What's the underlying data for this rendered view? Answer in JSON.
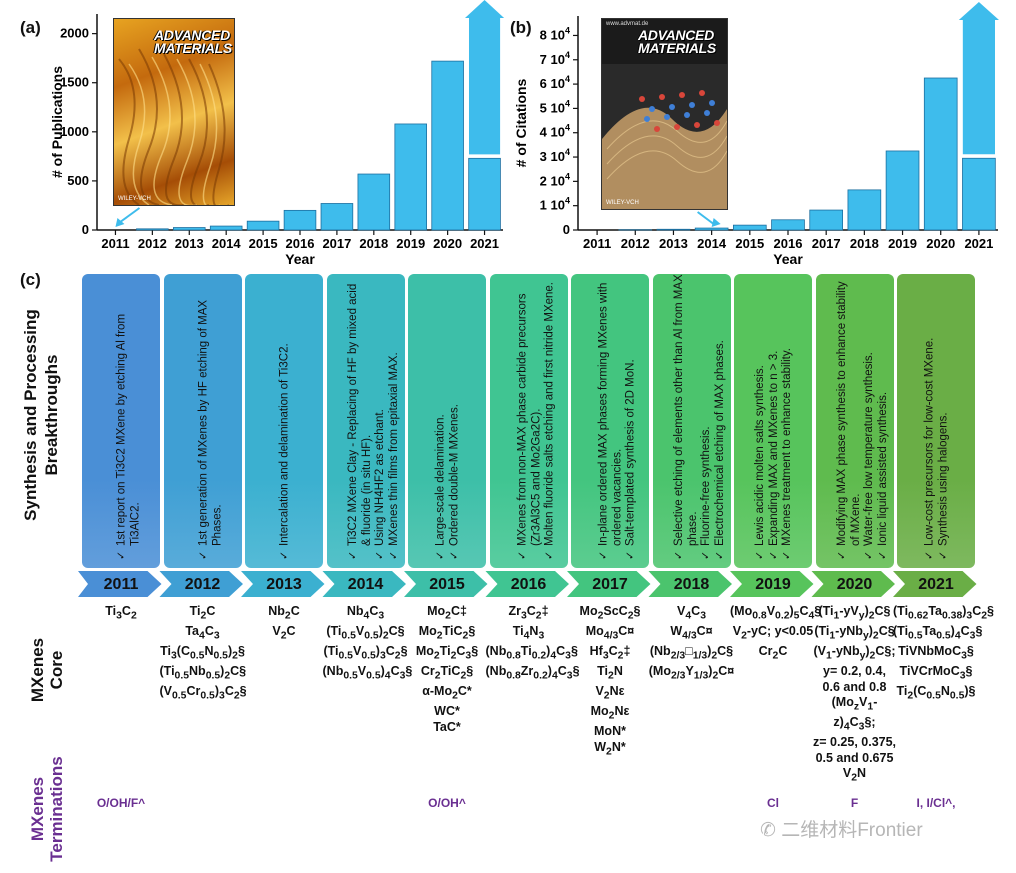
{
  "panels": {
    "a": {
      "letter": "(a)"
    },
    "b": {
      "letter": "(b)"
    },
    "c": {
      "letter": "(c)"
    }
  },
  "covers": {
    "a": {
      "title_line1": "ADVANCED",
      "title_line2": "MATERIALS",
      "footer": "WILEY-VCH"
    },
    "b": {
      "title_line1": "ADVANCED",
      "title_line2": "MATERIALS",
      "header": "www.advmat.de",
      "footer": "WILEY-VCH"
    }
  },
  "chart_data": [
    {
      "type": "bar",
      "title": "",
      "xlabel": "Year",
      "ylabel": "# of Publications",
      "categories": [
        "2011",
        "2012",
        "2013",
        "2014",
        "2015",
        "2016",
        "2017",
        "2018",
        "2019",
        "2020",
        "2021"
      ],
      "values": [
        0,
        12,
        25,
        40,
        90,
        200,
        270,
        570,
        1080,
        1720,
        730
      ],
      "ylim": [
        0,
        2200
      ],
      "yticks": [
        0,
        500,
        1000,
        1500,
        2000
      ],
      "ytick_labels": [
        "0",
        "500",
        "1000",
        "1500",
        "2000"
      ],
      "annotations": [
        "arrow pointing to 2011",
        "upward arrow above 2021 bar"
      ]
    },
    {
      "type": "bar",
      "title": "",
      "xlabel": "Year",
      "ylabel": "# of Citations",
      "categories": [
        "2011",
        "2012",
        "2013",
        "2014",
        "2015",
        "2016",
        "2017",
        "2018",
        "2019",
        "2020",
        "2021"
      ],
      "values": [
        0,
        100,
        300,
        800,
        2000,
        4200,
        8200,
        16500,
        32500,
        62500,
        29500
      ],
      "ylim": [
        0,
        88000
      ],
      "yticks": [
        0,
        10000,
        20000,
        30000,
        40000,
        50000,
        60000,
        70000,
        80000
      ],
      "ytick_labels": [
        "0",
        "1 10⁴",
        "2 10⁴",
        "3 10⁴",
        "4 10⁴",
        "5 10⁴",
        "6 10⁴",
        "7 10⁴",
        "8 10⁴"
      ],
      "annotations": [
        "arrow pointing to 2014",
        "upward arrow above 2021 bar"
      ]
    }
  ],
  "timeline": {
    "banner_title_line1": "Synthesis and Processing",
    "banner_title_line2": "Breakthroughs",
    "core_label": "MXenes\nCore",
    "terminations_label_line1": "MXenes",
    "terminations_label_line2": "Terminations",
    "colors": [
      "#4a8fd6",
      "#3f9fd4",
      "#3bb0d0",
      "#3ab8c0",
      "#3dbfa8",
      "#40c592",
      "#43c57f",
      "#4bc46d",
      "#57c45c",
      "#5fbb4e",
      "#6aae46"
    ],
    "years": [
      {
        "year": "2011",
        "breakthroughs": [
          "1st report on Ti3C2 MXene by etching Al from Ti3AlC2."
        ],
        "core": [
          "Ti3C2"
        ],
        "terminations": "O/OH/F^"
      },
      {
        "year": "2012",
        "breakthroughs": [
          "1st generation of MXenes by HF etching of MAX Phases."
        ],
        "core": [
          "Ti2C",
          "Ta4C3",
          "Ti3(C0.5N0.5)2§",
          "(Ti0.5Nb0.5)2C§",
          "(V0.5Cr0.5)3C2§"
        ],
        "terminations": ""
      },
      {
        "year": "2013",
        "breakthroughs": [
          "Intercalation and delamination of Ti3C2."
        ],
        "core": [
          "Nb2C",
          "V2C"
        ],
        "terminations": ""
      },
      {
        "year": "2014",
        "breakthroughs": [
          "Ti3C2 MXene Clay - Replacing of HF by mixed acid & fluoride (in situ HF).",
          "Using NH4HF2 as etchant.",
          "MXenes thin films from epitaxial MAX."
        ],
        "core": [
          "Nb4C3",
          "(Ti0.5V0.5)2C§",
          "(Ti0.5V0.5)3C2§",
          "(Nb0.5V0.5)4C3§"
        ],
        "terminations": ""
      },
      {
        "year": "2015",
        "breakthroughs": [
          "Large-scale delamination.",
          "Ordered double-M MXenes."
        ],
        "core": [
          "Mo2C‡",
          "Mo2TiC2§",
          "Mo2Ti2C3§",
          "Cr2TiC2§",
          "α-Mo2C*",
          "WC*",
          "TaC*"
        ],
        "terminations": "O/OH^"
      },
      {
        "year": "2016",
        "breakthroughs": [
          "MXenes from non-MAX phase carbide precursors (Zr3Al3C5 and Mo2Ga2C).",
          "Molten fluoride salts etching and first nitride MXene."
        ],
        "core": [
          "Zr3C2‡",
          "Ti4N3",
          "(Nb0.8Ti0.2)4C3§",
          "(Nb0.8Zr0.2)4C3§"
        ],
        "terminations": ""
      },
      {
        "year": "2017",
        "breakthroughs": [
          "In-plane ordered MAX phases forming MXenes with ordered vacancies.",
          "Salt-templated synthesis of 2D MoN."
        ],
        "core": [
          "Mo2ScC2§",
          "Mo4/3C¤",
          "Hf3C2‡",
          "Ti2N",
          "V2Nε",
          "Mo2Nε",
          "MoN*",
          "W2N*"
        ],
        "terminations": ""
      },
      {
        "year": "2018",
        "breakthroughs": [
          "Selective etching of elements other than Al from MAX phase.",
          "Fluorine-free synthesis.",
          "Electrochemical etching of MAX phases."
        ],
        "core": [
          "V4C3",
          "W4/3C¤",
          "(Nb2/3□1/3)2C§",
          "(Mo2/3Y1/3)2C¤"
        ],
        "terminations": ""
      },
      {
        "year": "2019",
        "breakthroughs": [
          "Lewis acidic molten salts synthesis.",
          "Expanding MAX and MXenes to n > 3.",
          "MXenes treatment to enhance stability."
        ],
        "core": [
          "(Mo0.8V0.2)5C4§",
          "V2-yC; y<0.05",
          "Cr2C"
        ],
        "terminations": "Cl"
      },
      {
        "year": "2020",
        "breakthroughs": [
          "Modifying MAX phase synthesis to enhance stability of MXene.",
          "Water-free low temperature synthesis.",
          "Ionic liquid assisted synthesis."
        ],
        "core": [
          "(Ti1-yVy)2C§",
          "(Ti1-yNby)2C§",
          "(V1-yNby)2C§;",
          "y= 0.2, 0.4,",
          "0.6 and 0.8",
          "(MozV1-z)4C3§;",
          "z= 0.25, 0.375,",
          "0.5 and 0.675",
          "V2N"
        ],
        "terminations": "F"
      },
      {
        "year": "2021",
        "breakthroughs": [
          "Low-cost precursors for low-cost MXene.",
          "Synthesis using halogens."
        ],
        "core": [
          "(Ti0.62Ta0.38)3C2§",
          "(Ti0.5Ta0.5)4C3§",
          "TiVNbMoC3§",
          "TiVCrMoC3§",
          "Ti2(C0.5N0.5)§"
        ],
        "terminations": "I, I/Cl^,"
      }
    ]
  },
  "watermark": "二维材料Frontier"
}
